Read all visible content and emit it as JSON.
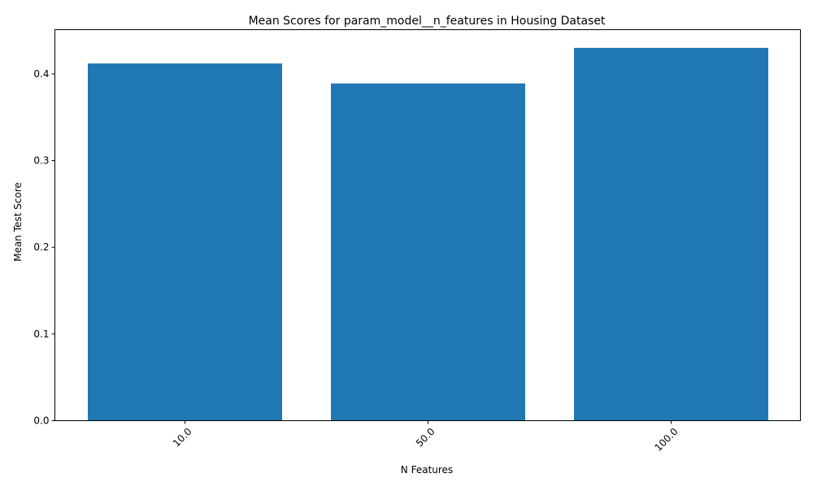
{
  "chart_data": {
    "type": "bar",
    "title": "Mean Scores for param_model__n_features in Housing Dataset",
    "xlabel": "N Features",
    "ylabel": "Mean Test Score",
    "categories": [
      "10.0",
      "50.0",
      "100.0"
    ],
    "values": [
      0.412,
      0.389,
      0.43
    ],
    "ylim": [
      0,
      0.451
    ],
    "yticks": [
      "0.0",
      "0.1",
      "0.2",
      "0.3",
      "0.4"
    ],
    "grid": false,
    "legend": "none",
    "bar_color": "#1f77b4"
  }
}
